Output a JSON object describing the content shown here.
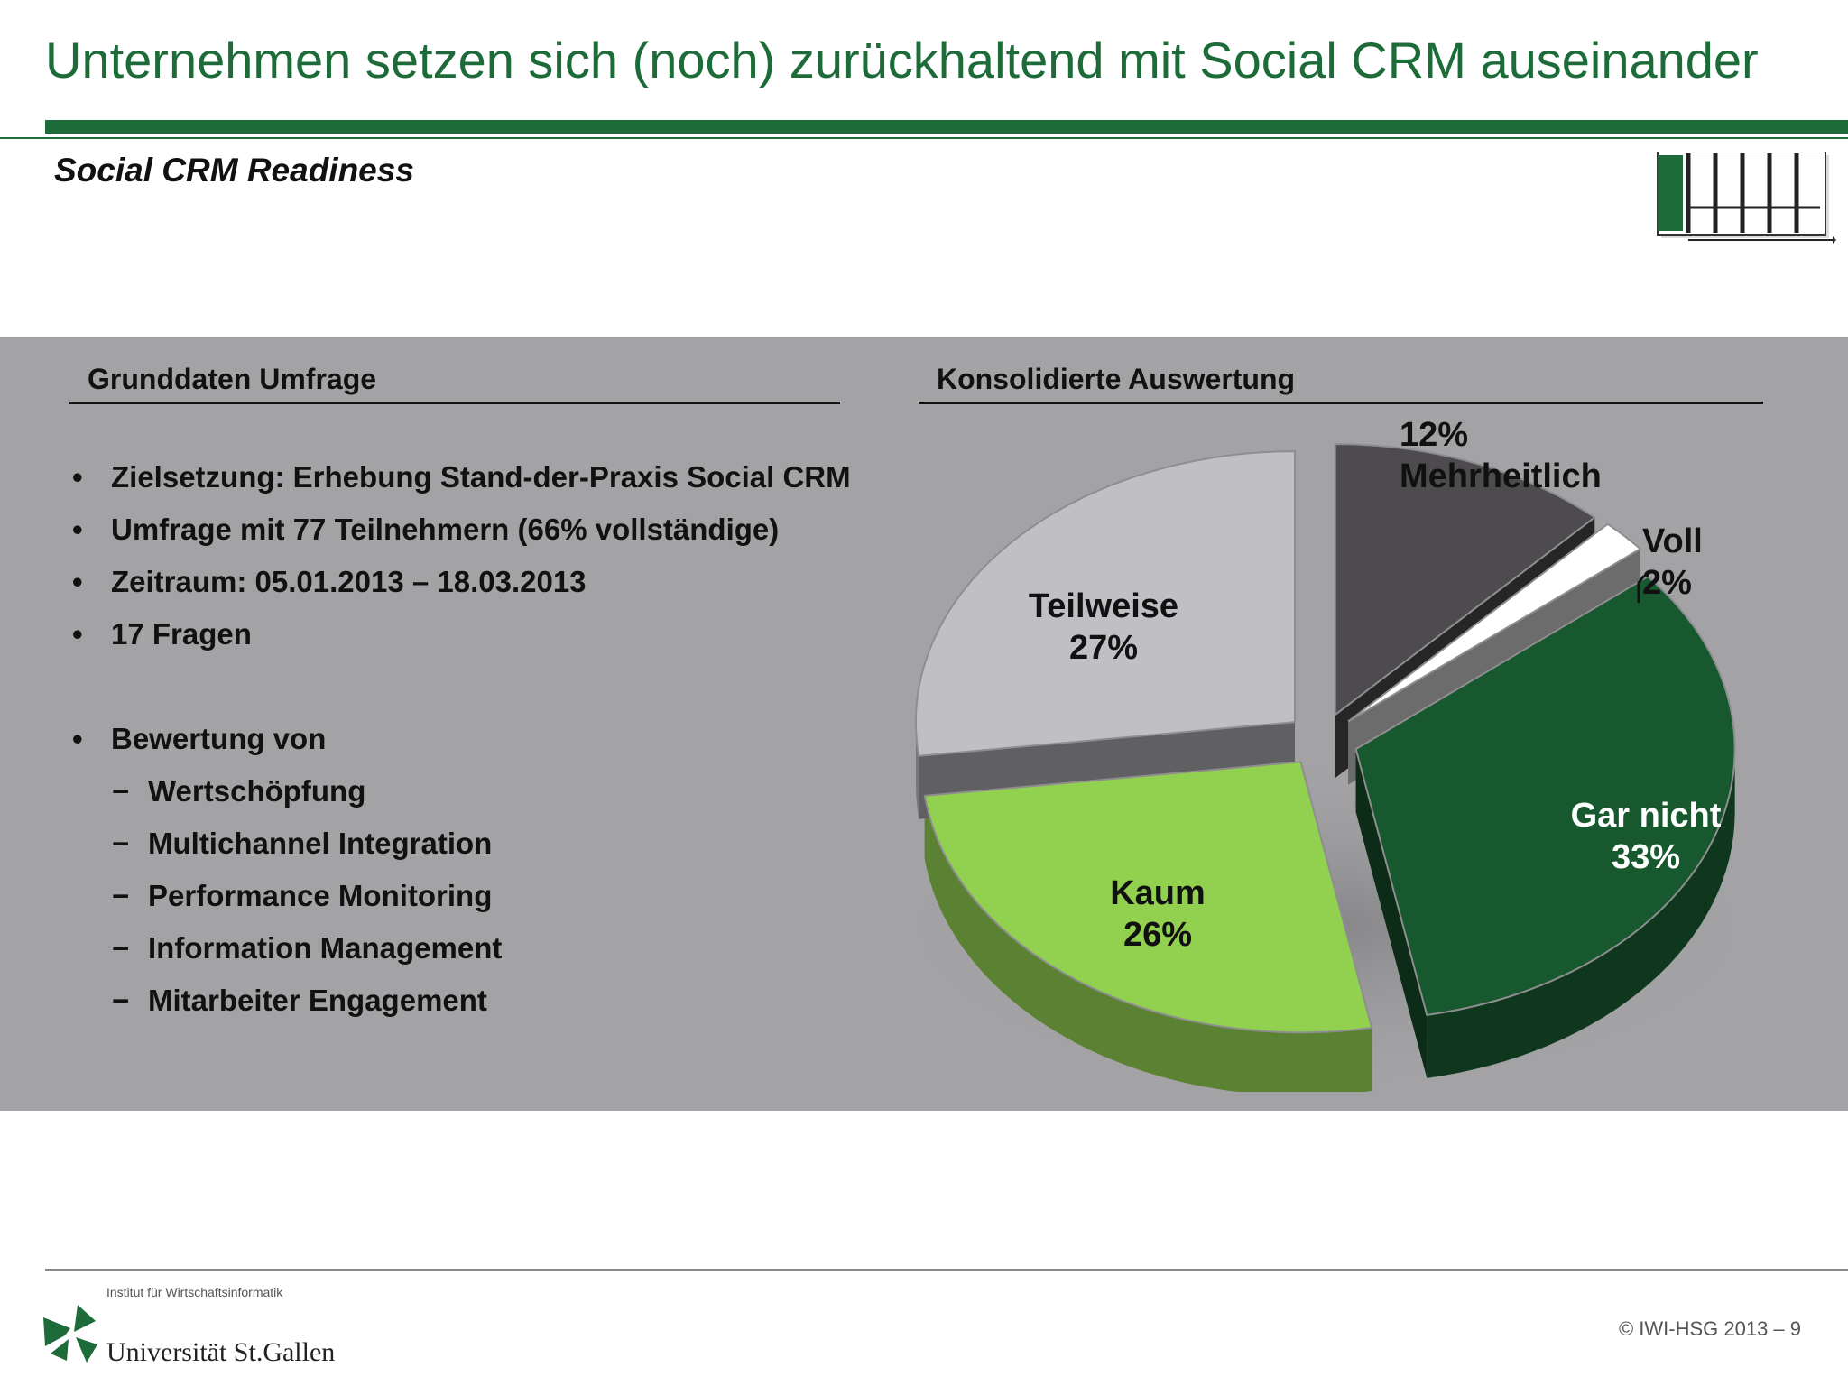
{
  "slide": {
    "title": "Unternehmen setzen sich (noch) zurückhaltend mit Social CRM auseinander",
    "subtitle": "Social CRM Readiness"
  },
  "left": {
    "heading": "Grunddaten Umfrage",
    "bullets": [
      {
        "marker": "•",
        "text": "Zielsetzung: Erhebung Stand-der-Praxis Social CRM"
      },
      {
        "marker": "•",
        "text": "Umfrage mit 77 Teilnehmern (66% vollständige)"
      },
      {
        "marker": "•",
        "text": "Zeitraum: 05.01.2013 – 18.03.2013"
      },
      {
        "marker": "•",
        "text": "17 Fragen"
      },
      {
        "marker": "•",
        "text": "Bewertung von"
      },
      {
        "marker": "−",
        "text": "Wertschöpfung"
      },
      {
        "marker": "−",
        "text": "Multichannel Integration"
      },
      {
        "marker": "−",
        "text": "Performance Monitoring"
      },
      {
        "marker": "−",
        "text": "Information Management"
      },
      {
        "marker": "−",
        "text": "Mitarbeiter Engagement"
      }
    ]
  },
  "right": {
    "heading": "Konsolidierte Auswertung"
  },
  "chart_data": {
    "type": "pie",
    "title": "",
    "slices": [
      {
        "label": "Mehrheitlich",
        "value": 12,
        "display": "12%",
        "color": "#4d4b4e"
      },
      {
        "label": "Voll",
        "value": 2,
        "display": "2%",
        "color": "#ffffff"
      },
      {
        "label": "Gar nicht",
        "value": 33,
        "display": "33%",
        "color": "#17582e"
      },
      {
        "label": "Kaum",
        "value": 26,
        "display": "26%",
        "color": "#92d050"
      },
      {
        "label": "Teilweise",
        "value": 27,
        "display": "27%",
        "color": "#c0bfc3"
      }
    ]
  },
  "footer": {
    "institute": "Institut für Wirtschaftsinformatik",
    "university": "Universität St.Gallen",
    "copyright": "© IWI-HSG 2013 – 9"
  },
  "colors": {
    "brand_green": "#1e6b3a",
    "panel_gray": "#a3a2a4"
  }
}
